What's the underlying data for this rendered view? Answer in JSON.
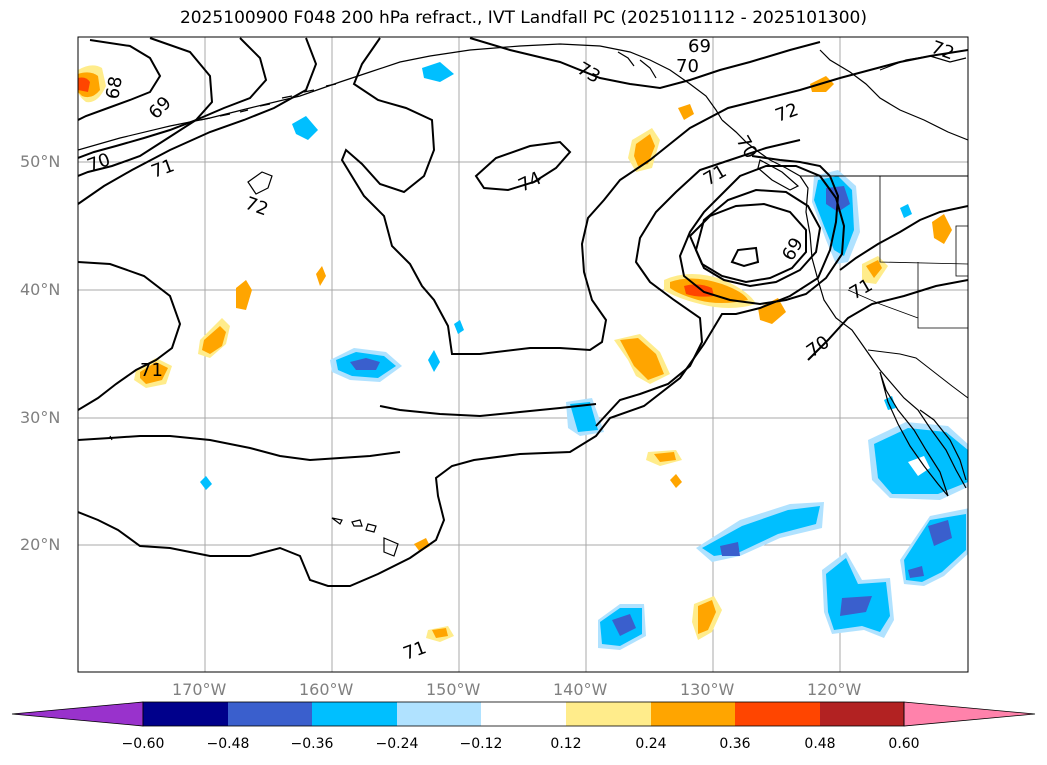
{
  "title": "2025100900 F048 200 hPa refract., IVT Landfall PC (2025101112 - 2025101300)",
  "map": {
    "lat_ticks": [
      "50°N",
      "40°N",
      "30°N",
      "20°N"
    ],
    "lon_ticks": [
      "170°W",
      "160°W",
      "150°W",
      "140°W",
      "130°W",
      "120°W"
    ],
    "contour_labels": [
      "69",
      "70",
      "72",
      "73",
      "68",
      "69",
      "70",
      "71",
      "72",
      "74",
      "71",
      "70",
      "69",
      "71",
      "72",
      "70",
      "71",
      "71"
    ]
  },
  "colorbar": {
    "ticks": [
      "−0.60",
      "−0.48",
      "−0.36",
      "−0.24",
      "−0.12",
      "0.12",
      "0.24",
      "0.36",
      "0.48",
      "0.60"
    ],
    "colors": [
      "#9932cc",
      "#00008b",
      "#3a5fcd",
      "#00bfff",
      "#b0e2ff",
      "#ffffff",
      "#ffec8b",
      "#ffa500",
      "#ff4500",
      "#b22222",
      "#ff82ab"
    ]
  }
}
